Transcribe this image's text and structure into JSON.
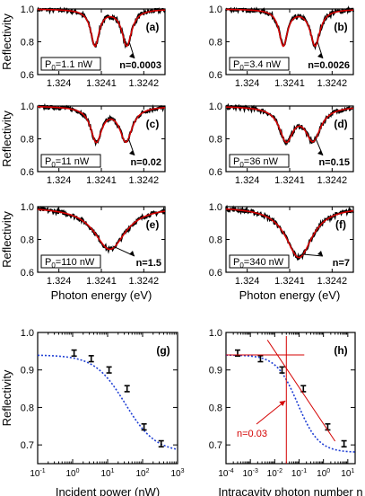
{
  "chart_data": [
    {
      "panel": "(a)",
      "type": "line",
      "ylabel": "Reflectivity",
      "xlabel": "",
      "ylim": [
        0.6,
        1.0
      ],
      "xlim": [
        1.32395,
        1.32425
      ],
      "x_ticks": [
        "1.324",
        "1.3241",
        "1.3242"
      ],
      "y_ticks": [
        "0.6",
        "0.8",
        "1.0"
      ],
      "power_label": "P0=1.1 nW",
      "n_label": "n=0.0003",
      "dip_centers": [
        1.324085,
        1.32416
      ],
      "dip_widths": [
        1.2e-05,
        1.4e-05
      ],
      "dip_depths": [
        0.22,
        0.22
      ],
      "series": [
        {
          "name": "data",
          "color": "#000000"
        },
        {
          "name": "fit",
          "color": "#d40000"
        }
      ]
    },
    {
      "panel": "(b)",
      "type": "line",
      "ylabel": "",
      "xlabel": "",
      "ylim": [
        0.6,
        1.0
      ],
      "xlim": [
        1.32395,
        1.32425
      ],
      "x_ticks": [
        "1.324",
        "1.3241",
        "1.3242"
      ],
      "y_ticks": [
        "0.6",
        "0.8",
        "1.0"
      ],
      "power_label": "P0=3.4 nW",
      "n_label": "n=0.0026",
      "dip_centers": [
        1.324085,
        1.32416
      ],
      "dip_widths": [
        1.2e-05,
        1.4e-05
      ],
      "dip_depths": [
        0.22,
        0.22
      ],
      "series": [
        {
          "name": "data",
          "color": "#000000"
        },
        {
          "name": "fit",
          "color": "#d40000"
        }
      ]
    },
    {
      "panel": "(c)",
      "type": "line",
      "ylabel": "Reflectivity",
      "xlabel": "",
      "ylim": [
        0.6,
        1.0
      ],
      "xlim": [
        1.32395,
        1.32425
      ],
      "x_ticks": [
        "1.324",
        "1.3241",
        "1.3242"
      ],
      "y_ticks": [
        "0.6",
        "0.8",
        "1.0"
      ],
      "power_label": "P0=11 nW",
      "n_label": "n=0.02",
      "dip_centers": [
        1.324088,
        1.324158
      ],
      "dip_widths": [
        1.6e-05,
        1.8e-05
      ],
      "dip_depths": [
        0.21,
        0.21
      ],
      "series": [
        {
          "name": "data",
          "color": "#000000"
        },
        {
          "name": "fit",
          "color": "#d40000"
        }
      ]
    },
    {
      "panel": "(d)",
      "type": "line",
      "ylabel": "",
      "xlabel": "",
      "ylim": [
        0.6,
        1.0
      ],
      "xlim": [
        1.32395,
        1.32425
      ],
      "x_ticks": [
        "1.324",
        "1.3241",
        "1.3242"
      ],
      "y_ticks": [
        "0.6",
        "0.8",
        "1.0"
      ],
      "power_label": "P0=36 nW",
      "n_label": "n=0.15",
      "dip_centers": [
        1.324092,
        1.324155
      ],
      "dip_widths": [
        2e-05,
        2.2e-05
      ],
      "dip_depths": [
        0.2,
        0.2
      ],
      "series": [
        {
          "name": "data",
          "color": "#000000"
        },
        {
          "name": "fit",
          "color": "#d40000"
        }
      ]
    },
    {
      "panel": "(e)",
      "type": "line",
      "ylabel": "Reflectivity",
      "xlabel": "Photon energy (eV)",
      "ylim": [
        0.6,
        1.0
      ],
      "xlim": [
        1.32395,
        1.32425
      ],
      "x_ticks": [
        "1.324",
        "1.3241",
        "1.3242"
      ],
      "y_ticks": [
        "0.6",
        "0.8",
        "1.0"
      ],
      "power_label": "P0=110 nW",
      "n_label": "n=1.5",
      "dip_centers": [
        1.32412
      ],
      "dip_widths": [
        4.5e-05
      ],
      "dip_depths": [
        0.26
      ],
      "series": [
        {
          "name": "data",
          "color": "#000000"
        },
        {
          "name": "fit",
          "color": "#d40000"
        }
      ]
    },
    {
      "panel": "(f)",
      "type": "line",
      "ylabel": "",
      "xlabel": "Photon energy (eV)",
      "ylim": [
        0.6,
        1.0
      ],
      "xlim": [
        1.32395,
        1.32425
      ],
      "x_ticks": [
        "1.324",
        "1.3241",
        "1.3242"
      ],
      "y_ticks": [
        "0.6",
        "0.8",
        "1.0"
      ],
      "power_label": "P0=340 nW",
      "n_label": "n=7",
      "dip_centers": [
        1.324122
      ],
      "dip_widths": [
        3.8e-05
      ],
      "dip_depths": [
        0.31
      ],
      "series": [
        {
          "name": "data",
          "color": "#000000"
        },
        {
          "name": "fit",
          "color": "#d40000"
        }
      ]
    },
    {
      "panel": "(g)",
      "type": "scatter",
      "ylabel": "Reflectivity",
      "xlabel": "Incident power (nW)",
      "x_scale": "log",
      "xlim": [
        0.1,
        1000
      ],
      "ylim": [
        0.65,
        1.0
      ],
      "x_ticks": [
        "10-1",
        "100",
        "101",
        "102",
        "103"
      ],
      "y_ticks": [
        "0.7",
        "0.8",
        "0.9",
        "1.0"
      ],
      "x": [
        1.1,
        3.4,
        11,
        36,
        110,
        340
      ],
      "y": [
        0.945,
        0.93,
        0.9,
        0.85,
        0.748,
        0.703
      ],
      "yerr": [
        0.008,
        0.008,
        0.008,
        0.008,
        0.008,
        0.008
      ],
      "fit_color": "#1f3fd4"
    },
    {
      "panel": "(h)",
      "type": "scatter",
      "ylabel": "",
      "xlabel": "Intracavity photon number n",
      "x_scale": "log",
      "xlim": [
        0.0001,
        20
      ],
      "ylim": [
        0.65,
        1.0
      ],
      "x_ticks": [
        "10-4",
        "10-3",
        "10-2",
        "10-1",
        "100",
        "101"
      ],
      "y_ticks": [
        "0.7",
        "0.8",
        "0.9",
        "1.0"
      ],
      "x": [
        0.0003,
        0.0026,
        0.02,
        0.15,
        1.5,
        7
      ],
      "y": [
        0.945,
        0.93,
        0.9,
        0.85,
        0.748,
        0.703
      ],
      "yerr": [
        0.008,
        0.008,
        0.008,
        0.008,
        0.008,
        0.008
      ],
      "fit_color": "#1f3fd4",
      "annotation": "n=0.03",
      "annotation_color": "#d40000",
      "threshold_n": 0.03
    }
  ]
}
